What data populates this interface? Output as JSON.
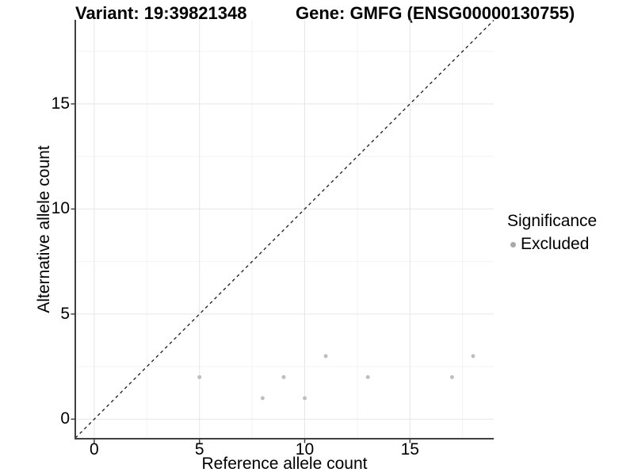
{
  "header": {
    "variant_title": "Variant: 19:39821348",
    "gene_title": "Gene: GMFG (ENSG00000130755)"
  },
  "chart_data": {
    "type": "scatter",
    "title": "",
    "xlabel": "Reference allele count",
    "ylabel": "Alternative allele count",
    "xlim": [
      -0.9,
      18.98
    ],
    "ylim": [
      -0.93,
      19.0
    ],
    "x_ticks": [
      0,
      5,
      10,
      15
    ],
    "y_ticks": [
      0,
      5,
      10,
      15
    ],
    "x_minor_gridlines": [
      2.5,
      7.5,
      12.5,
      17.5
    ],
    "y_minor_gridlines": [
      2.5,
      7.5,
      12.5,
      17.5
    ],
    "grid": true,
    "legend_position": "right",
    "series": [
      {
        "name": "Excluded",
        "color": "#bebebe",
        "point_radius": 2.5,
        "points": [
          [
            5,
            2
          ],
          [
            8,
            1
          ],
          [
            9,
            2
          ],
          [
            10,
            1
          ],
          [
            11,
            3
          ],
          [
            13,
            2
          ],
          [
            17,
            2
          ],
          [
            18,
            3
          ]
        ]
      }
    ],
    "reference_line": {
      "type": "identity",
      "equation": "y = x",
      "style": "dashed",
      "color": "#1a1a1a"
    }
  },
  "legend": {
    "title": "Significance",
    "items": [
      {
        "label": "Excluded",
        "color": "#a9a9a9"
      }
    ]
  },
  "colors": {
    "background": "#ffffff",
    "grid_major": "#e6e6e6",
    "grid_minor": "#f3f3f3",
    "axis_line": "#404040",
    "text": "#000000",
    "reference_line": "#1a1a1a"
  }
}
